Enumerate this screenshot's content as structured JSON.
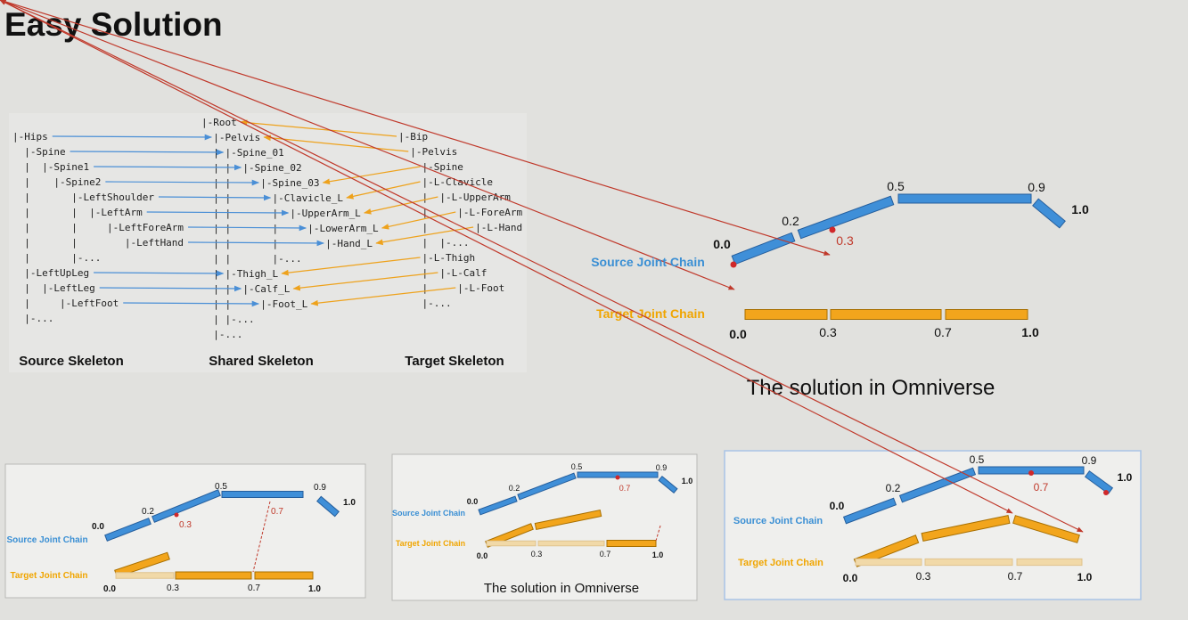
{
  "title": "Easy Solution",
  "skeletons": {
    "source": {
      "label": "Source Skeleton",
      "lines": [
        "|-Hips",
        "  |-Spine",
        "  |  |-Spine1",
        "  |    |-Spine2",
        "  |       |-LeftShoulder",
        "  |       |  |-LeftArm",
        "  |       |     |-LeftForeArm",
        "  |       |        |-LeftHand",
        "  |       |-...",
        "  |-LeftUpLeg",
        "  |  |-LeftLeg",
        "  |     |-LeftFoot",
        "  |-..."
      ]
    },
    "shared": {
      "label": "Shared Skeleton",
      "lines": [
        "|-Root",
        "  |-Pelvis",
        "  | |-Spine_01",
        "  | |  |-Spine_02",
        "  | |     |-Spine_03",
        "  | |       |-Clavicle_L",
        "  | |       |  |-UpperArm_L",
        "  | |       |     |-LowerArm_L",
        "  | |       |        |-Hand_L",
        "  | |       |-...",
        "  | |-Thigh_L",
        "  | |  |-Calf_L",
        "  | |     |-Foot_L",
        "  | |-...",
        "  |-..."
      ]
    },
    "target": {
      "label": "Target Skeleton",
      "lines": [
        "|-Bip",
        "  |-Pelvis",
        "    |-Spine",
        "    |-L-Clavicle",
        "    |  |-L-UpperArm",
        "    |     |-L-ForeArm",
        "    |        |-L-Hand",
        "    |  |-...",
        "    |-L-Thigh",
        "    |  |-L-Calf",
        "    |     |-L-Foot",
        "    |-..."
      ]
    }
  },
  "main": {
    "source_label": "Source Joint Chain",
    "target_label": "Target Joint Chain",
    "source_marks": [
      "0.0",
      "0.2",
      "0.5",
      "0.9",
      "1.0"
    ],
    "points": [
      "0.3"
    ],
    "target_marks": [
      "0.0",
      "0.3",
      "0.7",
      "1.0"
    ],
    "caption": "The solution in Omniverse"
  },
  "panels": [
    {
      "source_label": "Source Joint Chain",
      "target_label": "Target Joint Chain",
      "source_marks": [
        "0.0",
        "0.2",
        "0.5",
        "0.9",
        "1.0"
      ],
      "points": [
        "0.3",
        "0.7"
      ],
      "target_marks": [
        "0.0",
        "0.3",
        "0.7",
        "1.0"
      ]
    },
    {
      "source_label": "Source Joint Chain",
      "target_label": "Target Joint Chain",
      "source_marks": [
        "0.0",
        "0.2",
        "0.5",
        "0.9",
        "1.0"
      ],
      "points": [
        "0.7"
      ],
      "target_marks": [
        "0.0",
        "0.3",
        "0.7",
        "1.0"
      ],
      "caption": "The solution in Omniverse"
    },
    {
      "source_label": "Source Joint Chain",
      "target_label": "Target Joint Chain",
      "source_marks": [
        "0.0",
        "0.2",
        "0.5",
        "0.9",
        "1.0"
      ],
      "points": [
        "0.7"
      ],
      "target_marks": [
        "0.0",
        "0.3",
        "0.7",
        "1.0"
      ]
    }
  ]
}
